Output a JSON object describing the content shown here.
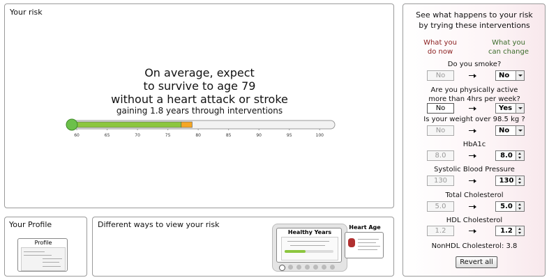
{
  "risk": {
    "title": "Your risk",
    "headline": [
      "On average, expect",
      "to survive to age 79",
      "without a heart attack or stroke"
    ],
    "subline": "gaining 1.8 years through interventions",
    "scale": {
      "xlim": [
        58.5,
        102.5
      ],
      "xticks": [
        60,
        65,
        70,
        75,
        80,
        85,
        90,
        95,
        100
      ],
      "values": [
        77.2,
        79
      ],
      "colors": [
        "#8cc63f",
        "#f5a623"
      ]
    }
  },
  "profile": {
    "title": "Your Profile",
    "thumbnail": "Profile"
  },
  "views": {
    "title": "Different ways to view your risk",
    "thumbnails": [
      "Healthy Years",
      "Heart Age"
    ]
  },
  "interventions": {
    "title": [
      "See what happens to your risk",
      "by trying these interventions"
    ],
    "now_header": [
      "What you",
      "do now"
    ],
    "change_header": [
      "What you",
      "can change"
    ],
    "rows": [
      {
        "label": [
          "Do you smoke?"
        ],
        "now": "No",
        "change": "No",
        "control": "select"
      },
      {
        "label": [
          "Are you physically active",
          "more than 4hrs per week?"
        ],
        "now": "No",
        "change": "Yes",
        "control": "select"
      },
      {
        "label": [
          "Is your weight over 98.5 kg ?"
        ],
        "now": "No",
        "change": "No",
        "control": "select"
      },
      {
        "label": [
          "HbA1c"
        ],
        "now": "8.0",
        "change": "8.0",
        "control": "spinner"
      },
      {
        "label": [
          "Systolic Blood Pressure"
        ],
        "now": "130",
        "change": "130",
        "control": "spinner"
      },
      {
        "label": [
          "Total Cholesterol"
        ],
        "now": "5.0",
        "change": "5.0",
        "control": "spinner"
      },
      {
        "label": [
          "HDL Cholesterol"
        ],
        "now": "1.2",
        "change": "1.2",
        "control": "spinner"
      }
    ],
    "nonhdl": "NonHDL Cholesterol: 3.8",
    "button": "Revert all"
  }
}
